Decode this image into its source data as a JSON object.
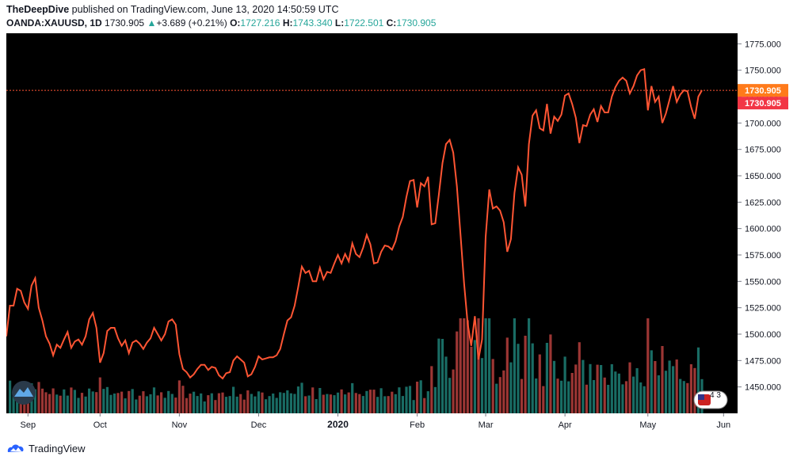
{
  "header": {
    "publisher": "TheDeepDive",
    "published_text": " published on TradingView.com, June 13, 2020 14:50:59 UTC",
    "symbol": "OANDA:XAUUSD, 1D",
    "last": "1730.905",
    "change": "+3.689 (+0.21%)",
    "o_label": "O:",
    "o_val": "1727.216",
    "h_label": "H:",
    "h_val": "1743.340",
    "l_label": "L:",
    "l_val": "1722.501",
    "c_label": "C:",
    "c_val": "1730.905"
  },
  "footer": {
    "brand": "TradingView"
  },
  "colors": {
    "line": "#ff5533",
    "vol_up": "#26a69a",
    "vol_down": "#ef5350",
    "badge_orange": "#ff7a1a",
    "badge_red": "#f23645"
  },
  "chart_data": {
    "type": "line",
    "title": "OANDA:XAUUSD, 1D",
    "ylim": [
      1425,
      1785
    ],
    "y_ticks": [
      1450,
      1475,
      1500,
      1525,
      1550,
      1575,
      1600,
      1625,
      1650,
      1675,
      1700,
      1725,
      1750,
      1775
    ],
    "y_tick_labels": [
      "1450.000",
      "1475.000",
      "1500.000",
      "1525.000",
      "1550.000",
      "1575.000",
      "1600.000",
      "1625.000",
      "1650.000",
      "1675.000",
      "1700.000",
      "1725.000",
      "1750.000",
      "1775.000"
    ],
    "x_labels": [
      "Sep",
      "Oct",
      "Nov",
      "Dec",
      "2020",
      "Feb",
      "Mar",
      "Apr",
      "May",
      "Jun"
    ],
    "x_label_index": [
      6,
      26,
      48,
      70,
      92,
      114,
      133,
      155,
      178,
      199
    ],
    "current_price": 1730.905,
    "price_badges": [
      "1730.905",
      "1730.905"
    ],
    "close": [
      1498,
      1527,
      1527,
      1543,
      1541,
      1530,
      1524,
      1546,
      1553,
      1525,
      1513,
      1498,
      1491,
      1480,
      1490,
      1487,
      1495,
      1502,
      1487,
      1493,
      1495,
      1490,
      1498,
      1514,
      1520,
      1506,
      1473,
      1482,
      1503,
      1506,
      1506,
      1496,
      1489,
      1494,
      1482,
      1492,
      1494,
      1491,
      1486,
      1492,
      1496,
      1506,
      1500,
      1494,
      1500,
      1512,
      1514,
      1509,
      1481,
      1467,
      1464,
      1459,
      1462,
      1467,
      1471,
      1471,
      1466,
      1469,
      1468,
      1461,
      1458,
      1463,
      1464,
      1475,
      1479,
      1476,
      1473,
      1460,
      1462,
      1469,
      1479,
      1476,
      1477,
      1478,
      1478,
      1480,
      1486,
      1500,
      1513,
      1516,
      1527,
      1545,
      1564,
      1558,
      1560,
      1550,
      1550,
      1563,
      1552,
      1559,
      1558,
      1567,
      1575,
      1567,
      1576,
      1569,
      1586,
      1576,
      1573,
      1582,
      1594,
      1585,
      1567,
      1568,
      1578,
      1584,
      1583,
      1580,
      1588,
      1602,
      1611,
      1630,
      1645,
      1646,
      1620,
      1643,
      1640,
      1649,
      1604,
      1605,
      1632,
      1662,
      1680,
      1684,
      1672,
      1640,
      1595,
      1548,
      1510,
      1489,
      1517,
      1476,
      1495,
      1592,
      1637,
      1619,
      1621,
      1617,
      1606,
      1578,
      1590,
      1634,
      1658,
      1651,
      1621,
      1680,
      1707,
      1712,
      1695,
      1693,
      1718,
      1690,
      1706,
      1702,
      1708,
      1726,
      1728,
      1718,
      1705,
      1681,
      1698,
      1697,
      1708,
      1713,
      1701,
      1716,
      1710,
      1710,
      1725,
      1734,
      1740,
      1743,
      1740,
      1728,
      1735,
      1745,
      1750,
      1751,
      1712,
      1735,
      1720,
      1725,
      1700,
      1709,
      1722,
      1735,
      1720,
      1727,
      1731,
      1730,
      1715,
      1704,
      1725,
      1731
    ]
  }
}
